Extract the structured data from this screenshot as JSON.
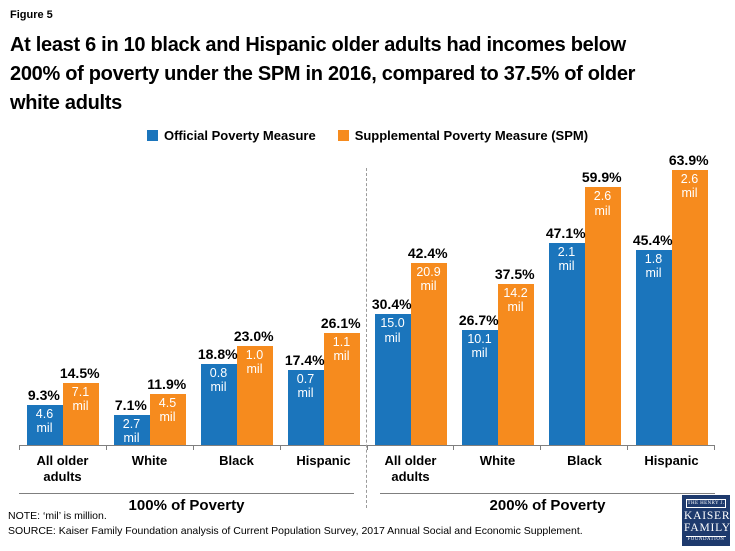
{
  "figure_label": "Figure 5",
  "title_lines": [
    "At least 6 in 10 black and Hispanic older adults had incomes below",
    "200% of poverty under the SPM in 2016, compared to 37.5% of older",
    "white adults"
  ],
  "legend": {
    "items": [
      {
        "label": "Official Poverty Measure",
        "color": "#1b75bc"
      },
      {
        "label": "Supplemental Poverty Measure (SPM)",
        "color": "#f68b1e"
      }
    ]
  },
  "chart_data": {
    "type": "bar",
    "unit_label": "mil",
    "ylabel": "",
    "xlabel": "",
    "ylim": [
      0,
      70
    ],
    "grid": false,
    "legend_position": "top",
    "series": [
      "Official Poverty Measure",
      "Supplemental Poverty Measure (SPM)"
    ],
    "colors": {
      "official": "#1b75bc",
      "spm": "#f68b1e"
    },
    "groups": [
      {
        "label": "100% of Poverty",
        "categories": [
          {
            "name": "All older adults",
            "official_pct": 9.3,
            "official_mil": 4.6,
            "spm_pct": 14.5,
            "spm_mil": 7.1
          },
          {
            "name": "White",
            "official_pct": 7.1,
            "official_mil": 2.7,
            "spm_pct": 11.9,
            "spm_mil": 4.5
          },
          {
            "name": "Black",
            "official_pct": 18.8,
            "official_mil": 0.8,
            "spm_pct": 23.0,
            "spm_mil": 1.0
          },
          {
            "name": "Hispanic",
            "official_pct": 17.4,
            "official_mil": 0.7,
            "spm_pct": 26.1,
            "spm_mil": 1.1
          }
        ]
      },
      {
        "label": "200% of Poverty",
        "categories": [
          {
            "name": "All older adults",
            "official_pct": 30.4,
            "official_mil": 15.0,
            "spm_pct": 42.4,
            "spm_mil": 20.9
          },
          {
            "name": "White",
            "official_pct": 26.7,
            "official_mil": 10.1,
            "spm_pct": 37.5,
            "spm_mil": 14.2
          },
          {
            "name": "Black",
            "official_pct": 47.1,
            "official_mil": 2.1,
            "spm_pct": 59.9,
            "spm_mil": 2.6
          },
          {
            "name": "Hispanic",
            "official_pct": 45.4,
            "official_mil": 1.8,
            "spm_pct": 63.9,
            "spm_mil": 2.6
          }
        ]
      }
    ]
  },
  "footer": {
    "note": "NOTE: ‘mil’ is million.",
    "source": "SOURCE: Kaiser Family Foundation analysis of Current Population Survey, 2017 Annual Social and Economic Supplement."
  },
  "logo": {
    "line1": "THE HENRY J.",
    "line2": "KAISER",
    "line3": "FAMILY",
    "line4": "FOUNDATION",
    "bg_color": "#1e3a6d"
  }
}
